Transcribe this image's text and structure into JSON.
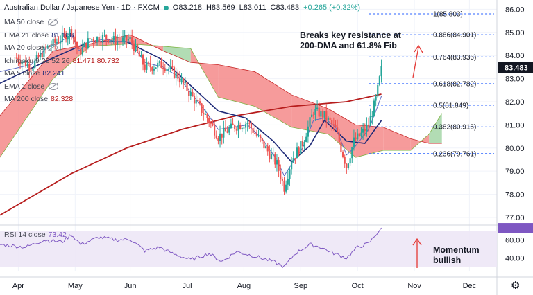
{
  "header": {
    "title": "Australian Dollar / Japanese Yen · 1D · FXCM",
    "open": "O83.218",
    "high": "H83.569",
    "low": "L83.011",
    "close": "C83.483",
    "change": "+0.265 (+0.32%)"
  },
  "indicators": [
    {
      "label": "MA 50 close",
      "value": "",
      "color": "#434651"
    },
    {
      "label": "EMA 21 close",
      "value": "81.188",
      "color": "#1e2a78"
    },
    {
      "label": "MA 20 close",
      "value": "",
      "color": "#434651"
    },
    {
      "label": "Ichimoku 9 26 52 26",
      "value": "81.471  80.732",
      "color": "#b71c1c"
    },
    {
      "label": "MA 5 close",
      "value": "82.241",
      "color": "#1e2a78"
    },
    {
      "label": "EMA 1 close",
      "value": "",
      "color": "#434651"
    },
    {
      "label": "MA 200 close",
      "value": "82.328",
      "color": "#b71c1c"
    }
  ],
  "rsi": {
    "label": "RSI 14 close",
    "value": "73.42"
  },
  "annotations": {
    "resistance": [
      "Breaks key resistance at",
      "200-DMA and 61.8% Fib"
    ],
    "momentum": [
      "Momentum",
      "bullish"
    ]
  },
  "colors": {
    "up": "#26a69a",
    "down": "#ef5350",
    "ema21": "#1e2a78",
    "ma5": "#5c6bc0",
    "ma200": "#b71c1c",
    "cloud_bull": "#a5d6a7",
    "cloud_bear": "#f48a8a",
    "fib": "#2962ff",
    "rsi": "#7e57c2",
    "arrow": "#e53935"
  },
  "chart_data": {
    "type": "candlestick",
    "symbol": "AUDJPY",
    "timeframe": "1D",
    "ylim": [
      76.7,
      86.4
    ],
    "price_ticks": [
      77.0,
      78.0,
      79.0,
      80.0,
      81.0,
      82.0,
      83.0,
      84.0,
      85.0,
      86.0
    ],
    "x_labels": [
      "Apr",
      "May",
      "Jun",
      "Jul",
      "Aug",
      "Sep",
      "Oct",
      "Nov",
      "Dec"
    ],
    "x_label_pos": [
      1,
      32,
      62,
      93,
      124,
      155,
      186,
      217,
      247
    ],
    "x_range": [
      -9,
      262
    ],
    "last_price": 83.483,
    "fib_levels": [
      {
        "label": "1(85.803)",
        "value": 85.803
      },
      {
        "label": "0.886(84.901)",
        "value": 84.901
      },
      {
        "label": "0.764(83.936)",
        "value": 83.936
      },
      {
        "label": "0.618(82.782)",
        "value": 82.782
      },
      {
        "label": "0.5(81.849)",
        "value": 81.849
      },
      {
        "label": "0.382(80.915)",
        "value": 80.915
      },
      {
        "label": "0.236(79.761)",
        "value": 79.761
      }
    ],
    "fib_x_start": 192,
    "series_key": [
      {
        "day": 0,
        "price": 83.9
      },
      {
        "day": 8,
        "price": 83.5
      },
      {
        "day": 16,
        "price": 84.3
      },
      {
        "day": 24,
        "price": 84.7
      },
      {
        "day": 30,
        "price": 85.1
      },
      {
        "day": 34,
        "price": 84.1
      },
      {
        "day": 40,
        "price": 84.7
      },
      {
        "day": 48,
        "price": 84.8
      },
      {
        "day": 55,
        "price": 84.6
      },
      {
        "day": 62,
        "price": 84.7
      },
      {
        "day": 70,
        "price": 83.5
      },
      {
        "day": 80,
        "price": 83.6
      },
      {
        "day": 88,
        "price": 83.1
      },
      {
        "day": 96,
        "price": 82.2
      },
      {
        "day": 104,
        "price": 81.3
      },
      {
        "day": 110,
        "price": 80.5
      },
      {
        "day": 118,
        "price": 80.9
      },
      {
        "day": 126,
        "price": 81.1
      },
      {
        "day": 134,
        "price": 80.2
      },
      {
        "day": 142,
        "price": 79.3
      },
      {
        "day": 146,
        "price": 78.3
      },
      {
        "day": 150,
        "price": 79.5
      },
      {
        "day": 156,
        "price": 80.2
      },
      {
        "day": 162,
        "price": 81.6
      },
      {
        "day": 168,
        "price": 81.4
      },
      {
        "day": 174,
        "price": 80.8
      },
      {
        "day": 180,
        "price": 79.2
      },
      {
        "day": 184,
        "price": 80.3
      },
      {
        "day": 188,
        "price": 80.6
      },
      {
        "day": 192,
        "price": 81.0
      },
      {
        "day": 196,
        "price": 82.1
      },
      {
        "day": 199,
        "price": 83.4
      }
    ],
    "ma200": [
      {
        "day": -9,
        "price": 77.1
      },
      {
        "day": 30,
        "price": 78.9
      },
      {
        "day": 60,
        "price": 80.0
      },
      {
        "day": 90,
        "price": 80.8
      },
      {
        "day": 120,
        "price": 81.4
      },
      {
        "day": 150,
        "price": 81.8
      },
      {
        "day": 180,
        "price": 82.0
      },
      {
        "day": 199,
        "price": 82.33
      }
    ],
    "ema21": [
      {
        "day": -9,
        "price": 82.8
      },
      {
        "day": 20,
        "price": 83.9
      },
      {
        "day": 40,
        "price": 84.6
      },
      {
        "day": 60,
        "price": 84.6
      },
      {
        "day": 80,
        "price": 83.8
      },
      {
        "day": 95,
        "price": 82.7
      },
      {
        "day": 110,
        "price": 81.6
      },
      {
        "day": 125,
        "price": 81.3
      },
      {
        "day": 140,
        "price": 80.3
      },
      {
        "day": 150,
        "price": 79.4
      },
      {
        "day": 160,
        "price": 80.1
      },
      {
        "day": 168,
        "price": 81.2
      },
      {
        "day": 180,
        "price": 80.3
      },
      {
        "day": 190,
        "price": 80.2
      },
      {
        "day": 199,
        "price": 81.19
      }
    ],
    "ma5": [
      {
        "day": -9,
        "price": 83.3
      },
      {
        "day": 8,
        "price": 83.6
      },
      {
        "day": 16,
        "price": 84.3
      },
      {
        "day": 24,
        "price": 84.6
      },
      {
        "day": 30,
        "price": 84.9
      },
      {
        "day": 34,
        "price": 84.2
      },
      {
        "day": 40,
        "price": 84.6
      },
      {
        "day": 48,
        "price": 84.7
      },
      {
        "day": 55,
        "price": 84.6
      },
      {
        "day": 62,
        "price": 84.6
      },
      {
        "day": 70,
        "price": 83.7
      },
      {
        "day": 80,
        "price": 83.5
      },
      {
        "day": 88,
        "price": 83.1
      },
      {
        "day": 96,
        "price": 82.3
      },
      {
        "day": 104,
        "price": 81.5
      },
      {
        "day": 110,
        "price": 80.8
      },
      {
        "day": 118,
        "price": 80.9
      },
      {
        "day": 126,
        "price": 81.0
      },
      {
        "day": 134,
        "price": 80.4
      },
      {
        "day": 142,
        "price": 79.5
      },
      {
        "day": 146,
        "price": 78.8
      },
      {
        "day": 150,
        "price": 79.3
      },
      {
        "day": 156,
        "price": 80.0
      },
      {
        "day": 162,
        "price": 81.2
      },
      {
        "day": 168,
        "price": 81.3
      },
      {
        "day": 174,
        "price": 80.9
      },
      {
        "day": 180,
        "price": 79.7
      },
      {
        "day": 184,
        "price": 80.0
      },
      {
        "day": 188,
        "price": 80.4
      },
      {
        "day": 192,
        "price": 80.8
      },
      {
        "day": 196,
        "price": 81.6
      },
      {
        "day": 199,
        "price": 82.24
      }
    ],
    "cloud": [
      {
        "day": -9,
        "a": 79.6,
        "b": 81.4
      },
      {
        "day": 20,
        "a": 83.0,
        "b": 84.2
      },
      {
        "day": 40,
        "a": 84.4,
        "b": 84.5
      },
      {
        "day": 62,
        "a": 84.5,
        "b": 84.9
      },
      {
        "day": 80,
        "a": 84.4,
        "b": 84.2
      },
      {
        "day": 95,
        "a": 84.3,
        "b": 83.7
      },
      {
        "day": 110,
        "a": 82.2,
        "b": 83.6
      },
      {
        "day": 130,
        "a": 81.8,
        "b": 83.3
      },
      {
        "day": 150,
        "a": 80.9,
        "b": 82.3
      },
      {
        "day": 170,
        "a": 80.6,
        "b": 81.7
      },
      {
        "day": 185,
        "a": 79.6,
        "b": 81.0
      },
      {
        "day": 200,
        "a": 79.9,
        "b": 80.9
      },
      {
        "day": 215,
        "a": 79.9,
        "b": 80.4
      },
      {
        "day": 225,
        "a": 80.6,
        "b": 80.2
      },
      {
        "day": 232,
        "a": 81.5,
        "b": 80.2
      }
    ],
    "rsi": {
      "ylim": [
        25,
        75
      ],
      "ticks": [
        40.0,
        60.0
      ],
      "band": [
        30,
        70
      ],
      "last": 73.42,
      "points": [
        {
          "day": -9,
          "v": 55
        },
        {
          "day": 5,
          "v": 52
        },
        {
          "day": 15,
          "v": 60
        },
        {
          "day": 25,
          "v": 58
        },
        {
          "day": 30,
          "v": 66
        },
        {
          "day": 35,
          "v": 55
        },
        {
          "day": 45,
          "v": 63
        },
        {
          "day": 55,
          "v": 60
        },
        {
          "day": 62,
          "v": 61
        },
        {
          "day": 70,
          "v": 48
        },
        {
          "day": 78,
          "v": 52
        },
        {
          "day": 85,
          "v": 45
        },
        {
          "day": 95,
          "v": 38
        },
        {
          "day": 105,
          "v": 45
        },
        {
          "day": 112,
          "v": 36
        },
        {
          "day": 120,
          "v": 47
        },
        {
          "day": 130,
          "v": 42
        },
        {
          "day": 140,
          "v": 36
        },
        {
          "day": 146,
          "v": 30
        },
        {
          "day": 152,
          "v": 45
        },
        {
          "day": 160,
          "v": 55
        },
        {
          "day": 166,
          "v": 52
        },
        {
          "day": 172,
          "v": 46
        },
        {
          "day": 180,
          "v": 40
        },
        {
          "day": 186,
          "v": 52
        },
        {
          "day": 192,
          "v": 56
        },
        {
          "day": 196,
          "v": 66
        },
        {
          "day": 199,
          "v": 73.4
        }
      ]
    }
  }
}
